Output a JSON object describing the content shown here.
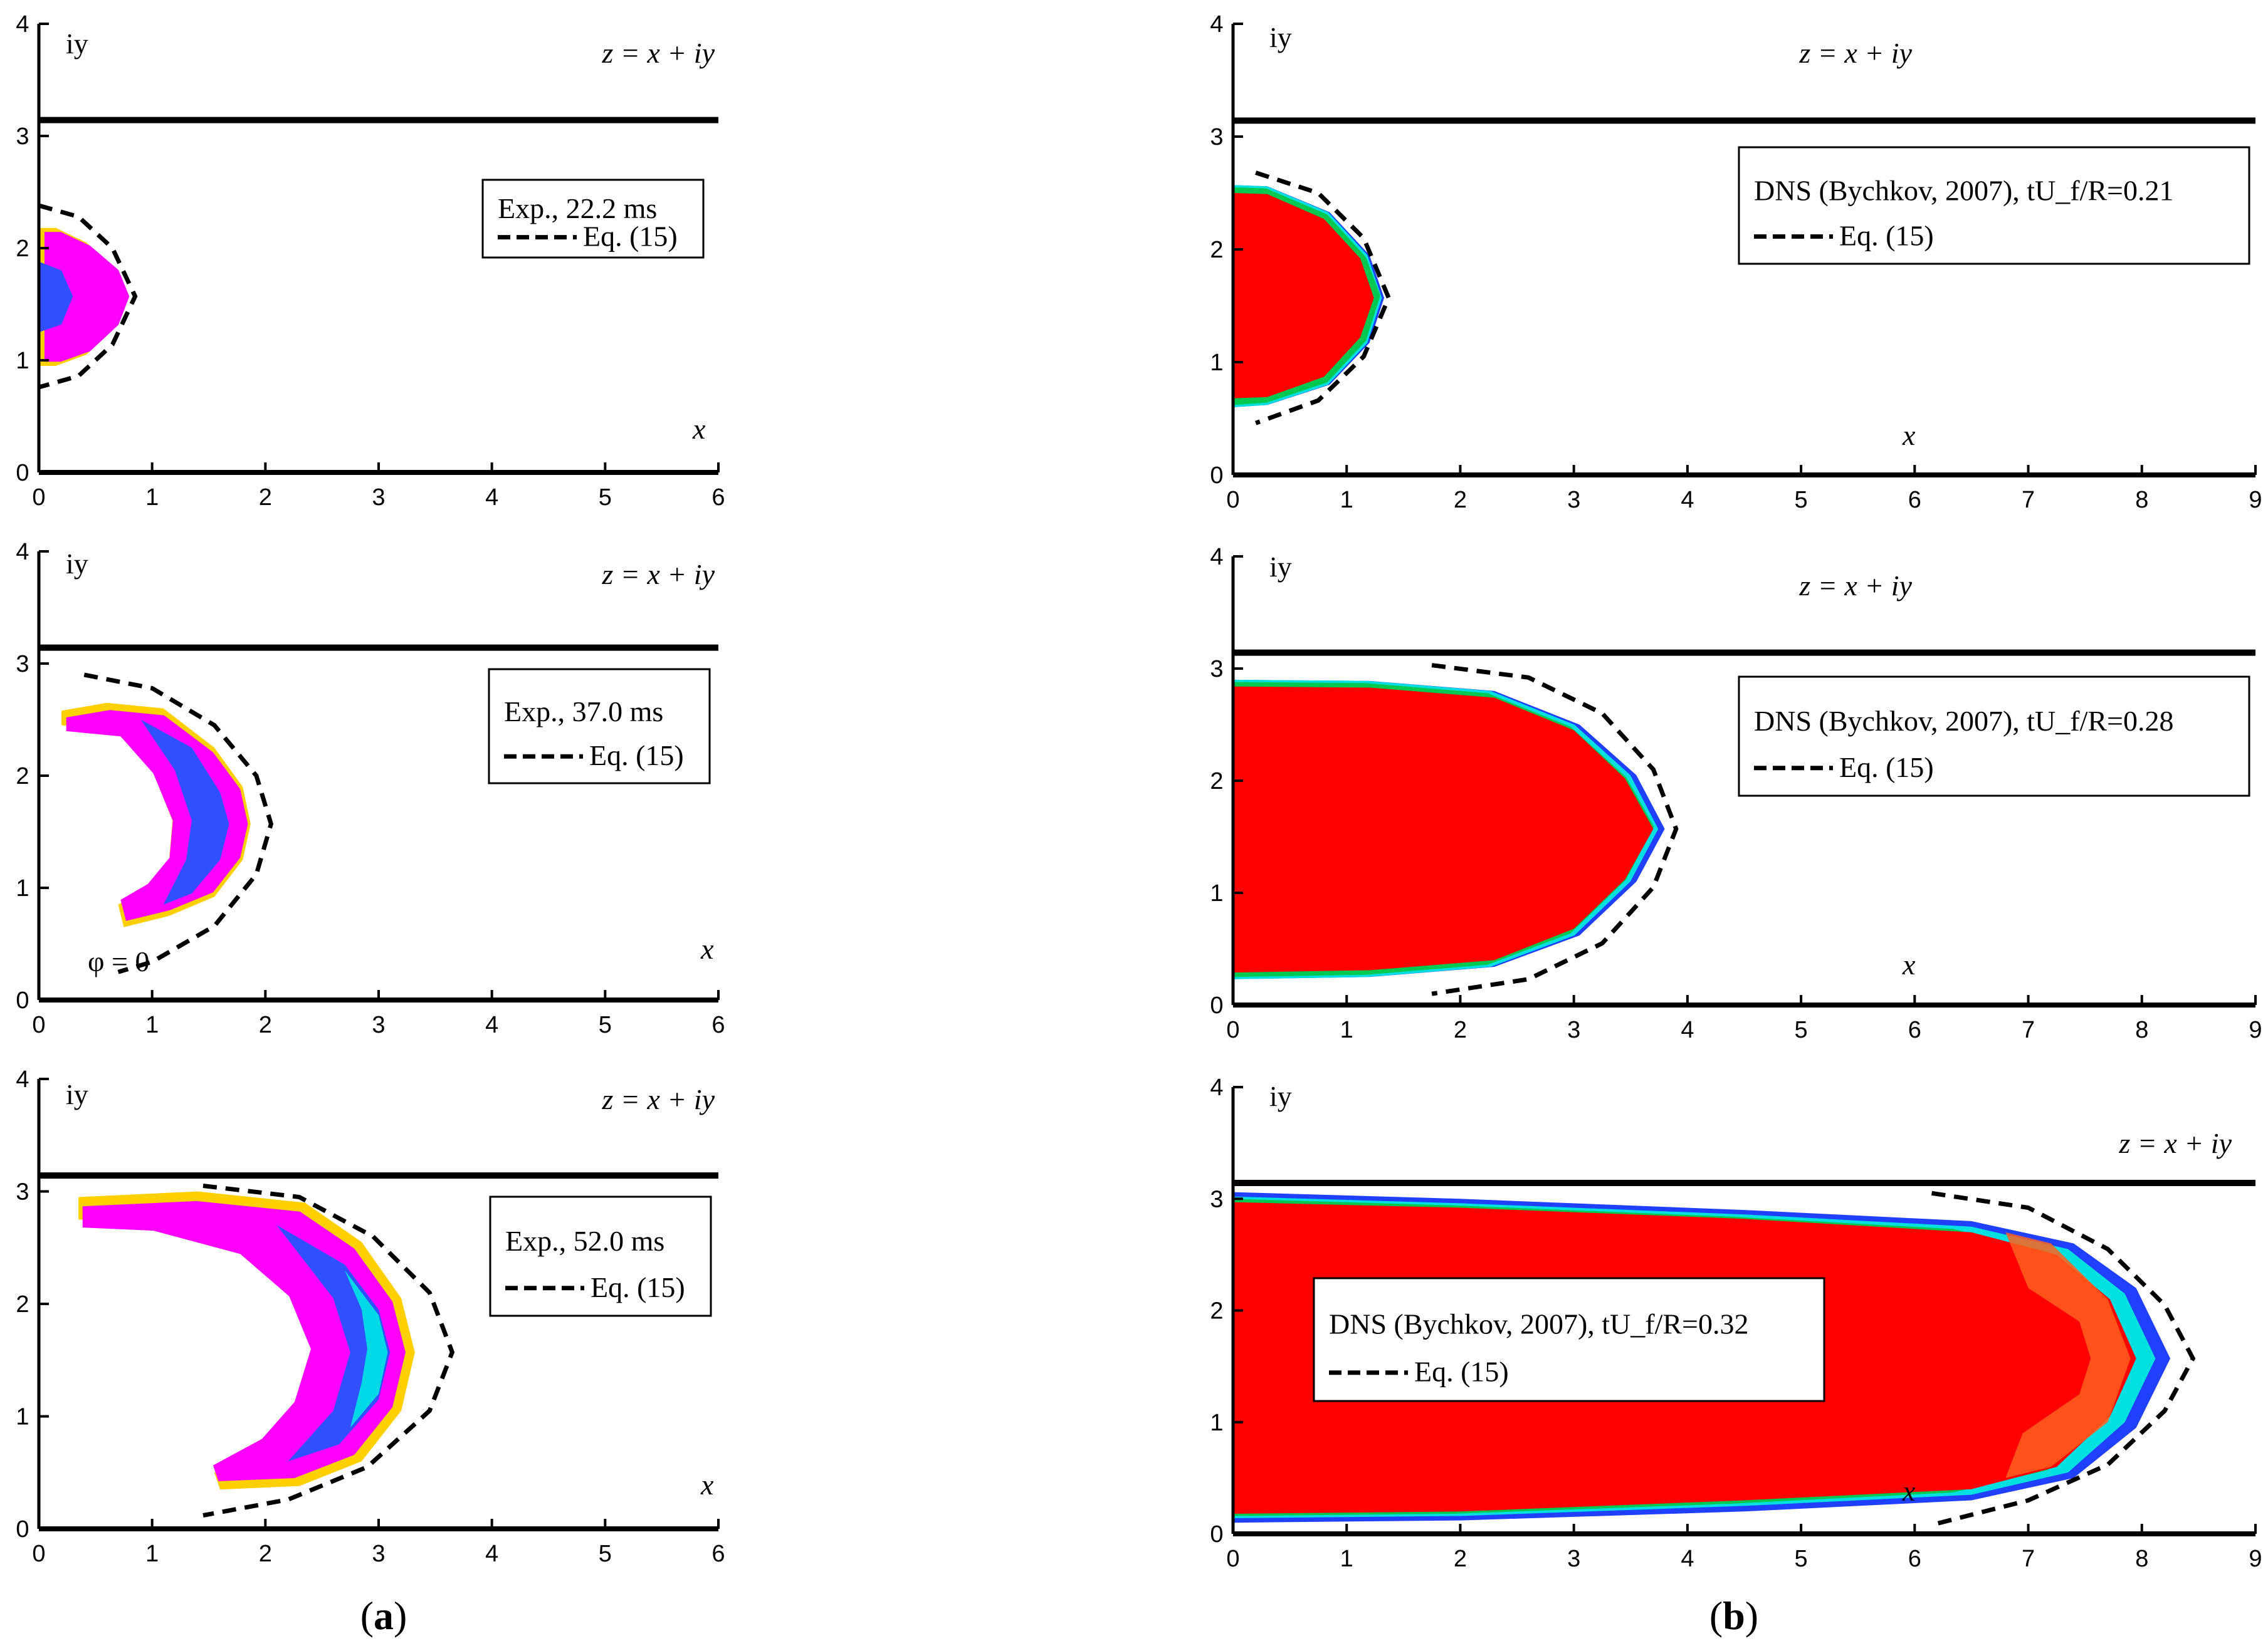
{
  "figure": {
    "caption_a": {
      "open": "(",
      "letter": "a",
      "close": ")"
    },
    "caption_b": {
      "open": "(",
      "letter": "b",
      "close": ")"
    }
  },
  "colors": {
    "flame_red": "#ff0000",
    "front_green": "#00c850",
    "front_cyan": "#00e0e0",
    "front_blue": "#2040ff",
    "exp_yellow": "#ffd000",
    "exp_magenta": "#ff00ff",
    "exp_blue": "#3050ff",
    "exp_cyan": "#00d8e8",
    "wall": "#000000",
    "theory_line": "#000000"
  },
  "chart_data": [
    {
      "type": "contour",
      "panel": "a-top",
      "xlim": [
        0,
        6
      ],
      "ylim": [
        0,
        4
      ],
      "xticks": [
        "0",
        "1",
        "2",
        "3",
        "4",
        "5",
        "6"
      ],
      "yticks": [
        "0",
        "1",
        "2",
        "3",
        "4"
      ],
      "ylabel": "iy",
      "xlabel": "x",
      "equation": "z = x + iy",
      "wall_y": 3.14159,
      "legend": [
        {
          "name": "Exp., 22.2 ms",
          "style": "image"
        },
        {
          "name": "Eq. (15)",
          "style": "dashed"
        }
      ],
      "theory_curve": [
        [
          0,
          2.38
        ],
        [
          0.35,
          2.28
        ],
        [
          0.65,
          2.0
        ],
        [
          0.85,
          1.57
        ],
        [
          0.65,
          1.14
        ],
        [
          0.35,
          0.86
        ],
        [
          0,
          0.76
        ]
      ],
      "front": {
        "outer": [
          [
            0,
            2.18
          ],
          [
            0.15,
            2.18
          ],
          [
            0.42,
            2.05
          ],
          [
            0.68,
            1.82
          ],
          [
            0.78,
            1.57
          ],
          [
            0.68,
            1.3
          ],
          [
            0.42,
            1.05
          ],
          [
            0.15,
            0.95
          ],
          [
            0,
            0.95
          ]
        ],
        "inner": [
          [
            0,
            1.88
          ],
          [
            0.2,
            1.8
          ],
          [
            0.3,
            1.57
          ],
          [
            0.2,
            1.32
          ],
          [
            0,
            1.25
          ]
        ]
      }
    },
    {
      "type": "contour",
      "panel": "a-middle",
      "xlim": [
        0,
        6
      ],
      "ylim": [
        0,
        4
      ],
      "xticks": [
        "0",
        "1",
        "2",
        "3",
        "4",
        "5",
        "6"
      ],
      "yticks": [
        "0",
        "1",
        "2",
        "3",
        "4"
      ],
      "ylabel": "iy",
      "xlabel": "x",
      "equation": "z = x + iy",
      "annotation": "φ = 0",
      "wall_y": 3.14159,
      "legend": [
        {
          "name": "Exp., 37.0 ms",
          "style": "image"
        },
        {
          "name": "Eq. (15)",
          "style": "dashed"
        }
      ],
      "theory_curve": [
        [
          0.4,
          2.9
        ],
        [
          1.0,
          2.78
        ],
        [
          1.55,
          2.45
        ],
        [
          1.92,
          2.0
        ],
        [
          2.05,
          1.57
        ],
        [
          1.92,
          1.12
        ],
        [
          1.55,
          0.66
        ],
        [
          1.0,
          0.34
        ],
        [
          0.7,
          0.25
        ]
      ],
      "front": {
        "outer": [
          [
            0.2,
            2.58
          ],
          [
            0.6,
            2.65
          ],
          [
            1.1,
            2.6
          ],
          [
            1.55,
            2.25
          ],
          [
            1.8,
            1.9
          ],
          [
            1.87,
            1.57
          ],
          [
            1.8,
            1.25
          ],
          [
            1.55,
            0.92
          ],
          [
            1.15,
            0.75
          ],
          [
            0.75,
            0.65
          ],
          [
            0.7,
            0.85
          ],
          [
            0.95,
            1.0
          ],
          [
            1.15,
            1.25
          ],
          [
            1.18,
            1.6
          ],
          [
            1.0,
            2.05
          ],
          [
            0.7,
            2.4
          ],
          [
            0.2,
            2.45
          ]
        ],
        "inner": [
          [
            0.9,
            2.5
          ],
          [
            1.35,
            2.25
          ],
          [
            1.6,
            1.85
          ],
          [
            1.68,
            1.57
          ],
          [
            1.6,
            1.25
          ],
          [
            1.35,
            0.95
          ],
          [
            1.1,
            0.85
          ],
          [
            1.3,
            1.25
          ],
          [
            1.35,
            1.6
          ],
          [
            1.2,
            2.05
          ]
        ]
      }
    },
    {
      "type": "contour",
      "panel": "a-bottom",
      "xlim": [
        0,
        6
      ],
      "ylim": [
        0,
        4
      ],
      "xticks": [
        "0",
        "1",
        "2",
        "3",
        "4",
        "5",
        "6"
      ],
      "yticks": [
        "0",
        "1",
        "2",
        "3",
        "4"
      ],
      "ylabel": "iy",
      "xlabel": "x",
      "equation": "z = x + iy",
      "wall_y": 3.14159,
      "legend": [
        {
          "name": "Exp., 52.0 ms",
          "style": "image"
        },
        {
          "name": "Eq. (15)",
          "style": "dashed"
        }
      ],
      "theory_curve": [
        [
          1.45,
          3.05
        ],
        [
          2.3,
          2.95
        ],
        [
          2.95,
          2.6
        ],
        [
          3.45,
          2.1
        ],
        [
          3.65,
          1.57
        ],
        [
          3.45,
          1.05
        ],
        [
          2.9,
          0.55
        ],
        [
          2.2,
          0.26
        ],
        [
          1.45,
          0.12
        ]
      ],
      "front": {
        "outer": [
          [
            0.35,
            2.95
          ],
          [
            1.4,
            3.0
          ],
          [
            2.35,
            2.9
          ],
          [
            2.85,
            2.55
          ],
          [
            3.2,
            2.05
          ],
          [
            3.32,
            1.57
          ],
          [
            3.2,
            1.05
          ],
          [
            2.85,
            0.6
          ],
          [
            2.3,
            0.38
          ],
          [
            1.6,
            0.35
          ],
          [
            1.55,
            0.5
          ],
          [
            2.0,
            0.75
          ],
          [
            2.3,
            1.1
          ],
          [
            2.45,
            1.6
          ],
          [
            2.25,
            2.1
          ],
          [
            1.8,
            2.5
          ],
          [
            1.0,
            2.72
          ],
          [
            0.35,
            2.75
          ]
        ],
        "inner": [
          [
            2.1,
            2.7
          ],
          [
            2.7,
            2.35
          ],
          [
            3.0,
            1.95
          ],
          [
            3.1,
            1.57
          ],
          [
            3.0,
            1.15
          ],
          [
            2.65,
            0.75
          ],
          [
            2.2,
            0.6
          ],
          [
            2.6,
            1.05
          ],
          [
            2.75,
            1.57
          ],
          [
            2.6,
            2.05
          ]
        ],
        "core": [
          [
            2.7,
            2.3
          ],
          [
            3.0,
            1.9
          ],
          [
            3.08,
            1.57
          ],
          [
            3.0,
            1.2
          ],
          [
            2.75,
            0.9
          ],
          [
            2.85,
            1.3
          ],
          [
            2.9,
            1.6
          ],
          [
            2.85,
            1.95
          ]
        ]
      }
    },
    {
      "type": "contour",
      "panel": "b-top",
      "xlim": [
        0,
        9
      ],
      "ylim": [
        0,
        4
      ],
      "xticks": [
        "0",
        "1",
        "2",
        "3",
        "4",
        "5",
        "6",
        "7",
        "8",
        "9"
      ],
      "yticks": [
        "0",
        "1",
        "2",
        "3",
        "4"
      ],
      "ylabel": "iy",
      "xlabel": "x",
      "equation": "z = x + iy",
      "wall_y": 3.14159,
      "legend": [
        {
          "name": "DNS (Bychkov, 2007), tU_f/R=0.21",
          "style": "image"
        },
        {
          "name": "Eq. (15)",
          "style": "dashed"
        }
      ],
      "theory_curve": [
        [
          0.2,
          2.68
        ],
        [
          0.75,
          2.5
        ],
        [
          1.15,
          2.1
        ],
        [
          1.37,
          1.57
        ],
        [
          1.15,
          1.05
        ],
        [
          0.75,
          0.66
        ],
        [
          0.2,
          0.46
        ]
      ],
      "front": {
        "outer": [
          [
            0,
            2.57
          ],
          [
            0.3,
            2.56
          ],
          [
            0.85,
            2.33
          ],
          [
            1.2,
            1.95
          ],
          [
            1.33,
            1.57
          ],
          [
            1.2,
            1.17
          ],
          [
            0.85,
            0.8
          ],
          [
            0.3,
            0.62
          ],
          [
            0,
            0.6
          ]
        ],
        "inner": [
          [
            0,
            2.5
          ],
          [
            0.3,
            2.49
          ],
          [
            0.8,
            2.27
          ],
          [
            1.12,
            1.92
          ],
          [
            1.24,
            1.57
          ],
          [
            1.12,
            1.22
          ],
          [
            0.8,
            0.87
          ],
          [
            0.3,
            0.69
          ],
          [
            0,
            0.68
          ]
        ]
      }
    },
    {
      "type": "contour",
      "panel": "b-middle",
      "xlim": [
        0,
        9
      ],
      "ylim": [
        0,
        4
      ],
      "xticks": [
        "0",
        "1",
        "2",
        "3",
        "4",
        "5",
        "6",
        "7",
        "8",
        "9"
      ],
      "yticks": [
        "0",
        "1",
        "2",
        "3",
        "4"
      ],
      "ylabel": "iy",
      "xlabel": "x",
      "equation": "z = x + iy",
      "wall_y": 3.14159,
      "legend": [
        {
          "name": "DNS (Bychkov, 2007), tU_f/R=0.28",
          "style": "image"
        },
        {
          "name": "Eq. (15)",
          "style": "dashed"
        }
      ],
      "theory_curve": [
        [
          1.75,
          3.03
        ],
        [
          2.6,
          2.92
        ],
        [
          3.25,
          2.6
        ],
        [
          3.7,
          2.1
        ],
        [
          3.9,
          1.57
        ],
        [
          3.7,
          1.05
        ],
        [
          3.25,
          0.55
        ],
        [
          2.6,
          0.23
        ],
        [
          1.75,
          0.1
        ]
      ],
      "front": {
        "outer": [
          [
            0,
            2.9
          ],
          [
            1.2,
            2.89
          ],
          [
            2.3,
            2.8
          ],
          [
            3.05,
            2.5
          ],
          [
            3.55,
            2.05
          ],
          [
            3.8,
            1.57
          ],
          [
            3.55,
            1.1
          ],
          [
            3.05,
            0.62
          ],
          [
            2.3,
            0.34
          ],
          [
            1.2,
            0.25
          ],
          [
            0,
            0.23
          ]
        ],
        "inner": [
          [
            0,
            2.84
          ],
          [
            1.2,
            2.83
          ],
          [
            2.3,
            2.74
          ],
          [
            3.0,
            2.45
          ],
          [
            3.45,
            2.02
          ],
          [
            3.7,
            1.57
          ],
          [
            3.45,
            1.12
          ],
          [
            3.0,
            0.68
          ],
          [
            2.3,
            0.4
          ],
          [
            1.2,
            0.31
          ],
          [
            0,
            0.29
          ]
        ]
      }
    },
    {
      "type": "contour",
      "panel": "b-bottom",
      "xlim": [
        0,
        9
      ],
      "ylim": [
        0,
        4
      ],
      "xticks": [
        "0",
        "1",
        "2",
        "3",
        "4",
        "5",
        "6",
        "7",
        "8",
        "9"
      ],
      "yticks": [
        "0",
        "1",
        "2",
        "3",
        "4"
      ],
      "ylabel": "iy",
      "xlabel": "x",
      "equation": "z = x + iy",
      "wall_y": 3.14159,
      "legend": [
        {
          "name": "DNS (Bychkov, 2007), tU_f/R=0.32",
          "style": "image"
        },
        {
          "name": "Eq. (15)",
          "style": "dashed"
        }
      ],
      "theory_curve": [
        [
          6.15,
          3.05
        ],
        [
          7.0,
          2.92
        ],
        [
          7.7,
          2.55
        ],
        [
          8.2,
          2.05
        ],
        [
          8.45,
          1.57
        ],
        [
          8.2,
          1.1
        ],
        [
          7.7,
          0.62
        ],
        [
          7.0,
          0.3
        ],
        [
          6.15,
          0.08
        ]
      ],
      "front": {
        "outer": [
          [
            0,
            3.06
          ],
          [
            2.0,
            3.0
          ],
          [
            4.5,
            2.9
          ],
          [
            6.5,
            2.8
          ],
          [
            7.4,
            2.6
          ],
          [
            7.95,
            2.2
          ],
          [
            8.25,
            1.57
          ],
          [
            7.95,
            0.95
          ],
          [
            7.4,
            0.5
          ],
          [
            6.5,
            0.3
          ],
          [
            4.5,
            0.2
          ],
          [
            2.0,
            0.12
          ],
          [
            0,
            0.1
          ]
        ],
        "mid": [
          [
            0,
            3.02
          ],
          [
            2.0,
            2.96
          ],
          [
            4.5,
            2.86
          ],
          [
            6.5,
            2.75
          ],
          [
            7.35,
            2.55
          ],
          [
            7.85,
            2.15
          ],
          [
            8.12,
            1.57
          ],
          [
            7.85,
            1.0
          ],
          [
            7.35,
            0.55
          ],
          [
            6.5,
            0.35
          ],
          [
            4.5,
            0.25
          ],
          [
            2.0,
            0.16
          ],
          [
            0,
            0.14
          ]
        ],
        "inner": [
          [
            0,
            2.97
          ],
          [
            2.0,
            2.92
          ],
          [
            4.5,
            2.82
          ],
          [
            6.5,
            2.7
          ],
          [
            7.25,
            2.5
          ],
          [
            7.72,
            2.1
          ],
          [
            7.95,
            1.57
          ],
          [
            7.72,
            1.05
          ],
          [
            7.25,
            0.6
          ],
          [
            6.5,
            0.4
          ],
          [
            4.5,
            0.3
          ],
          [
            2.0,
            0.2
          ],
          [
            0,
            0.18
          ]
        ],
        "wrinkle": [
          [
            6.8,
            2.7
          ],
          [
            7.2,
            2.6
          ],
          [
            7.7,
            2.1
          ],
          [
            7.9,
            1.57
          ],
          [
            7.7,
            1.0
          ],
          [
            7.2,
            0.6
          ],
          [
            6.8,
            0.5
          ],
          [
            6.95,
            0.9
          ],
          [
            7.45,
            1.25
          ],
          [
            7.55,
            1.57
          ],
          [
            7.45,
            1.9
          ],
          [
            7.0,
            2.2
          ]
        ]
      }
    }
  ]
}
